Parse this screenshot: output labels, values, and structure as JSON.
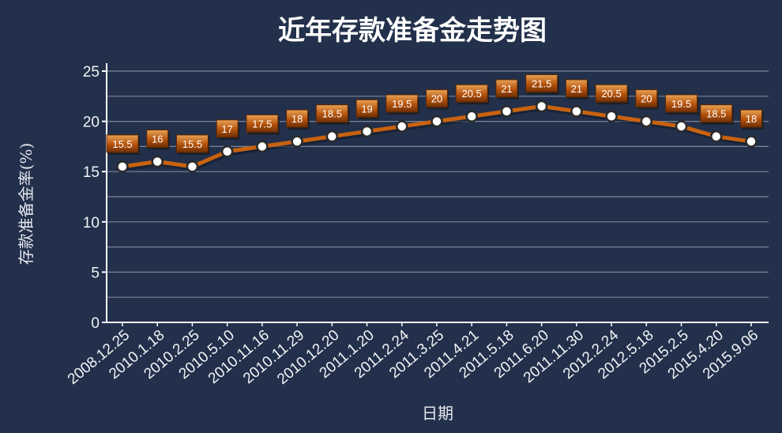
{
  "chart_data": {
    "type": "line",
    "title": "近年存款准备金走势图",
    "xlabel": "日期",
    "ylabel": "存款准备金率(%)",
    "ylim": [
      0,
      25
    ],
    "yticks": [
      0,
      5,
      10,
      15,
      20,
      25
    ],
    "grid": true,
    "categories": [
      "2008.12.25",
      "2010.1.18",
      "2010.2.25",
      "2010.5.10",
      "2010.11.16",
      "2010.11.29",
      "2010.12.20",
      "2011.1.20",
      "2011.2.24",
      "2011.3.25",
      "2011.4.21",
      "2011.5.18",
      "2011.6.20",
      "2011.11.30",
      "2012.2.24",
      "2012.5.18",
      "2015.2.5",
      "2015.4.20",
      "2015.9.06"
    ],
    "values": [
      15.5,
      16,
      15.5,
      17,
      17.5,
      18,
      18.5,
      19,
      19.5,
      20,
      20.5,
      21,
      21.5,
      21,
      20.5,
      20,
      19.5,
      18.5,
      18
    ],
    "data_labels": [
      "15.5",
      "16",
      "15.5",
      "17",
      "17.5",
      "18",
      "18.5",
      "19",
      "19.5",
      "20",
      "20.5",
      "21",
      "21.5",
      "21",
      "20.5",
      "20",
      "19.5",
      "18.5",
      "18"
    ],
    "colors": {
      "background": "#22304b",
      "line": "#c8620f",
      "marker_fill": "#ffffff",
      "marker_stroke": "#2a2a2a",
      "label_box": "#b5520c",
      "label_box_top": "#e8a255",
      "label_box_shadow": "#1b1b1b",
      "grid": "#8b93a6",
      "axis": "#ffffff",
      "text": "#ffffff"
    }
  }
}
